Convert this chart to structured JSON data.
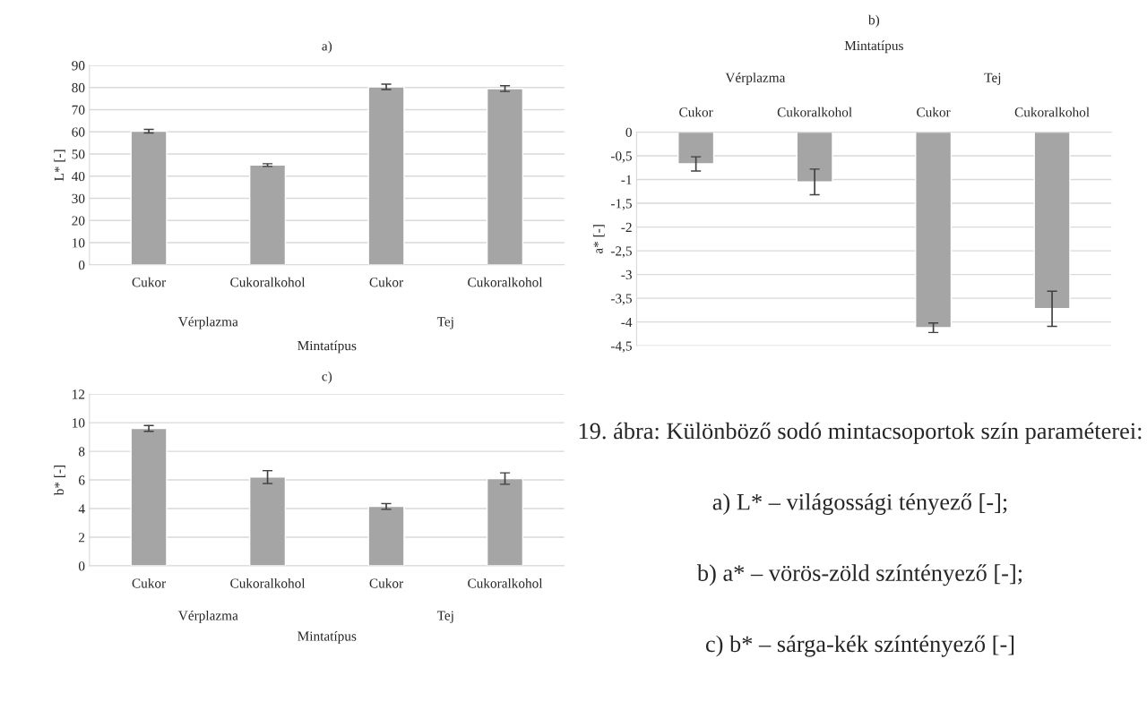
{
  "chart_data": [
    {
      "type": "bar",
      "title": "a)",
      "xlabel": "Mintatípus",
      "ylabel": "L* [-]",
      "categories": [
        "Cukor",
        "Cukoralkohol",
        "Cukor",
        "Cukoralkohol"
      ],
      "values": [
        60.3,
        45,
        80.3,
        79.5
      ],
      "errors": [
        0.8,
        0.6,
        1.2,
        1.3
      ],
      "color": "#a5a5a5",
      "ylim": [
        0,
        90
      ],
      "yticks": [
        0,
        10,
        20,
        30,
        40,
        50,
        60,
        70,
        80,
        90
      ],
      "grid": "y",
      "legend": false,
      "annotations": [
        "Vérplazma",
        "Tej"
      ]
    },
    {
      "type": "bar",
      "title": "b)",
      "xlabel": "Mintatípus",
      "ylabel": "a* [-]",
      "categories": [
        "Cukor",
        "Cukoralkohol",
        "Cukor",
        "Cukoralkohol"
      ],
      "values": [
        -0.67,
        -1.05,
        -4.12,
        -3.72
      ],
      "errors": [
        0.15,
        0.27,
        0.1,
        0.37
      ],
      "color": "#a5a5a5",
      "ylim": [
        -4.5,
        0
      ],
      "yticks": [
        {
          "value": -4.5,
          "label": "-4,5"
        },
        -4,
        {
          "value": -3.5,
          "label": "-3,5"
        },
        -3,
        {
          "value": -2.5,
          "label": "-2,5"
        },
        -2,
        {
          "value": -1.5,
          "label": "-1,5"
        },
        -1,
        {
          "value": -0.5,
          "label": "-0,5"
        },
        0
      ],
      "grid": "y",
      "legend": false,
      "annotations": [
        "Vérplazma",
        "Tej"
      ]
    },
    {
      "type": "bar",
      "title": "c)",
      "xlabel": "Mintatípus",
      "ylabel": "b* [-]",
      "categories": [
        "Cukor",
        "Cukoralkohol",
        "Cukor",
        "Cukoralkohol"
      ],
      "values": [
        9.6,
        6.2,
        4.15,
        6.1
      ],
      "errors": [
        0.2,
        0.45,
        0.2,
        0.4
      ],
      "color": "#a5a5a5",
      "ylim": [
        0,
        12
      ],
      "yticks": [
        0,
        2,
        4,
        6,
        8,
        10,
        12
      ],
      "grid": "y",
      "legend": false,
      "annotations": [
        "Vérplazma",
        "Tej"
      ]
    },
    {
      "type": "other",
      "title": "19. ábra: Különböző sodó mintacsoportok szín paraméterei:",
      "annotations": [
        "a) L* – világossági tényező [-];",
        "b) a* – vörös-zöld színtényező [-];",
        "c) b* – sárga-kék színtényező [-]"
      ]
    }
  ]
}
